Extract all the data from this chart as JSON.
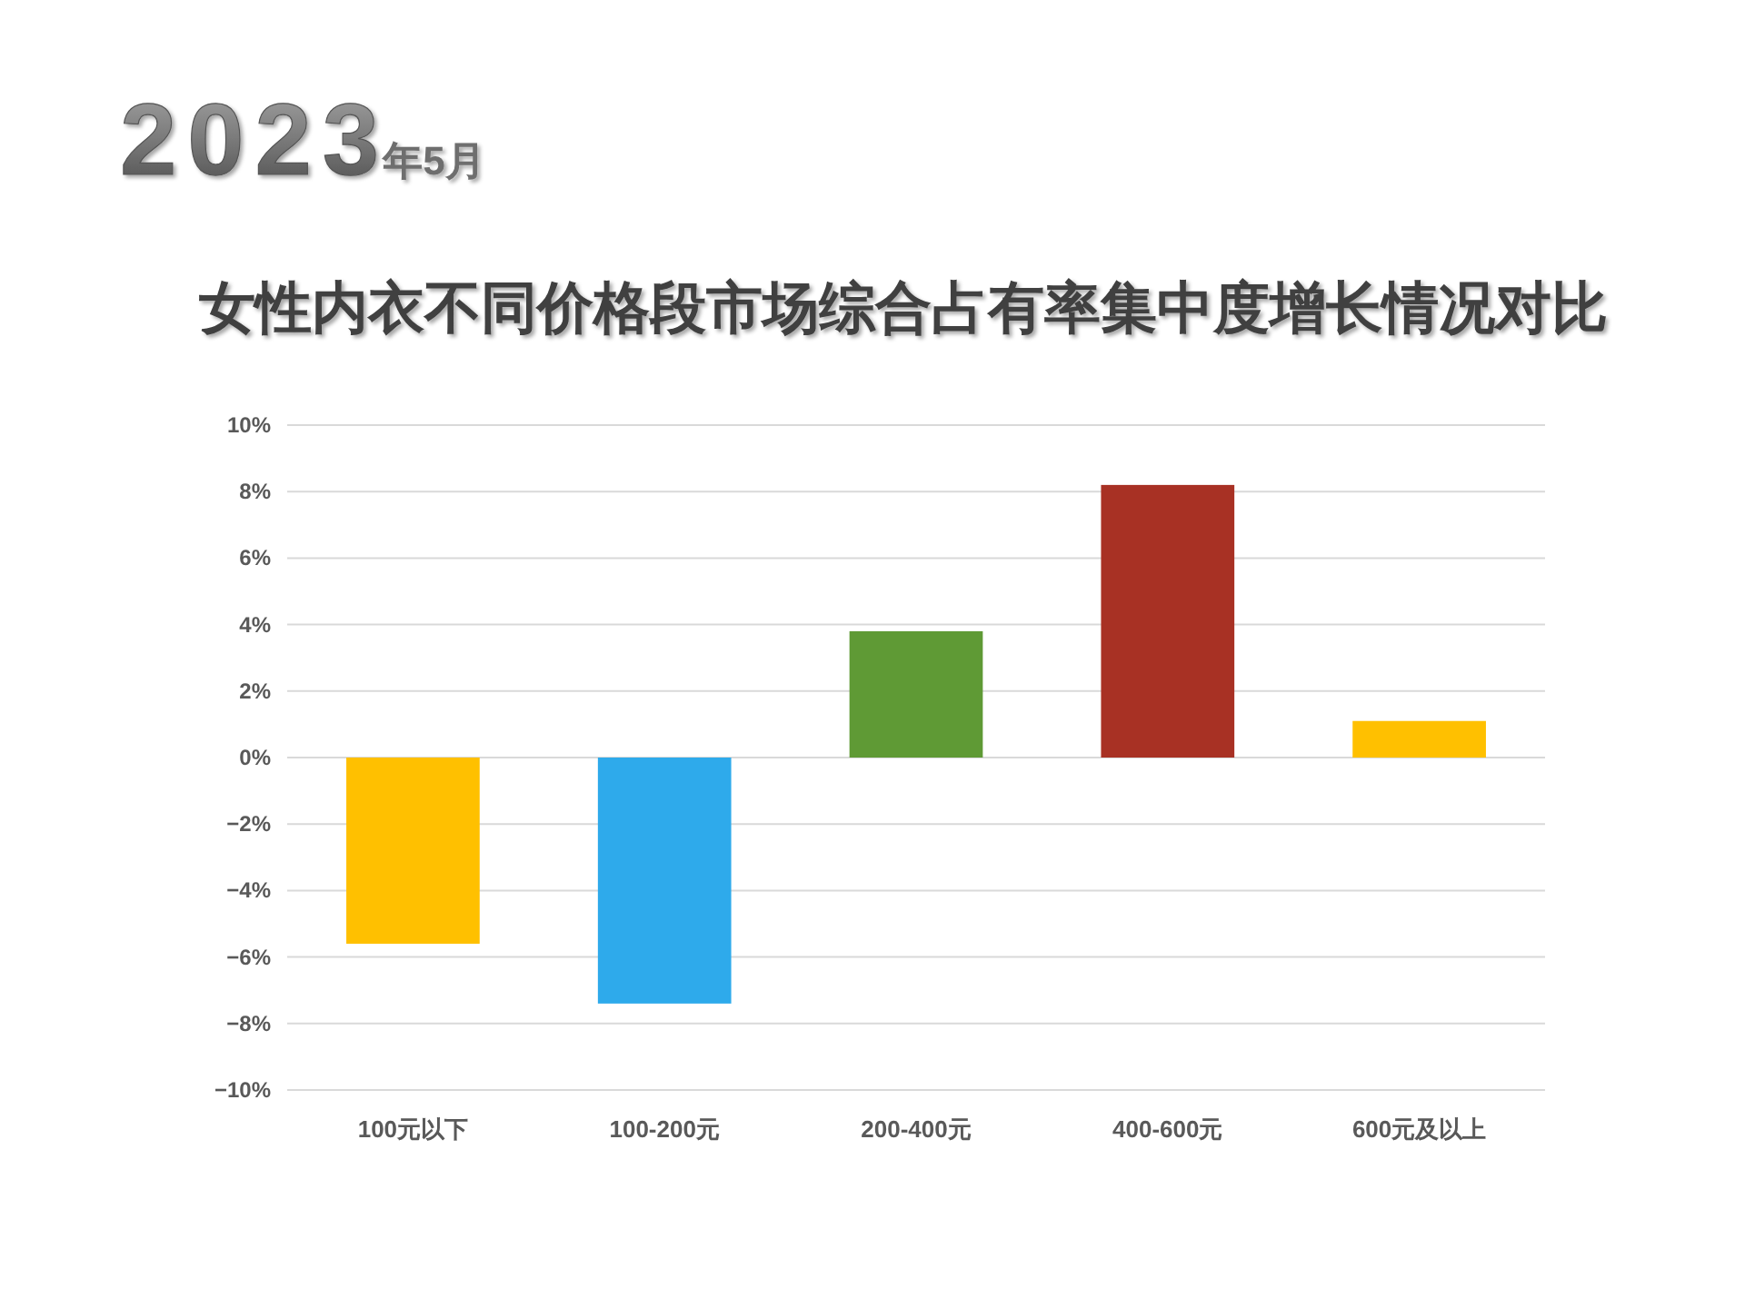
{
  "chart_data": {
    "type": "bar",
    "subtitle": "2023年5月",
    "title": "女性内衣不同价格段市场综合占有率集中度增长情况对比",
    "categories": [
      "100元以下",
      "100-200元",
      "200-400元",
      "400-600元",
      "600元及以上"
    ],
    "values": [
      -5.6,
      -7.4,
      3.8,
      8.2,
      1.1
    ],
    "colors": [
      "#ffc000",
      "#2eaaeb",
      "#5f9a35",
      "#a83124",
      "#ffc000"
    ],
    "ylim": [
      -10,
      10
    ],
    "yticks": [
      {
        "value": 10,
        "label": "10%"
      },
      {
        "value": 8,
        "label": "8%"
      },
      {
        "value": 6,
        "label": "6%"
      },
      {
        "value": 4,
        "label": "4%"
      },
      {
        "value": 2,
        "label": "2%"
      },
      {
        "value": 0,
        "label": "0%"
      },
      {
        "value": -2,
        "label": "−2%"
      },
      {
        "value": -4,
        "label": "−4%"
      },
      {
        "value": -6,
        "label": "−6%"
      },
      {
        "value": -8,
        "label": "−8%"
      },
      {
        "value": -10,
        "label": "−10%"
      }
    ],
    "grid": "y"
  }
}
